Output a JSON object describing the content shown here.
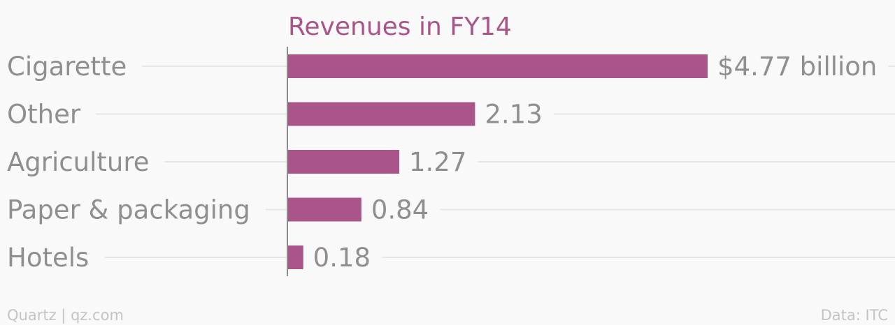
{
  "chart_data": {
    "type": "bar",
    "orientation": "horizontal",
    "title": "Revenues in FY14",
    "categories": [
      "Cigarette",
      "Other",
      "Agriculture",
      "Paper & packaging",
      "Hotels"
    ],
    "values": [
      4.77,
      2.13,
      1.27,
      0.84,
      0.18
    ],
    "value_labels": [
      "$4.77 billion",
      "2.13",
      "1.27",
      "0.84",
      "0.18"
    ],
    "unit": "billion",
    "xlim": [
      0,
      4.77
    ],
    "xlabel": "",
    "ylabel": "",
    "grid": true,
    "bar_color": "#a9558a"
  },
  "footer": {
    "source_left": "Quartz | qz.com",
    "source_right": "Data: ITC"
  },
  "colors": {
    "background": "#f9f9f9",
    "bar": "#a9558a",
    "title": "#a9558a",
    "label_text": "#8f8f8f",
    "footer_text": "#c4c4c4"
  }
}
